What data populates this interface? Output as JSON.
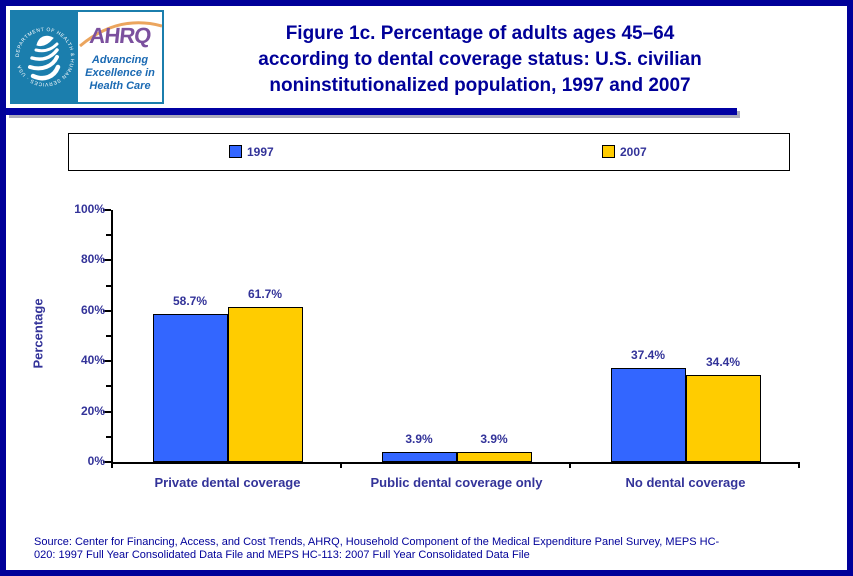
{
  "logo": {
    "seal_text": "DEPARTMENT OF HEALTH & HUMAN SERVICES · USA",
    "acronym": "AHRQ",
    "tagline_lines": [
      "Advancing",
      "Excellence in",
      "Health Care"
    ]
  },
  "title_lines": [
    "Figure 1c. Percentage of adults ages 45–64",
    "according to dental coverage status: U.S. civilian",
    "noninstitutionalized population, 1997 and 2007"
  ],
  "chart_data": {
    "type": "bar",
    "title": "Figure 1c. Percentage of adults ages 45–64 according to dental coverage status: U.S. civilian noninstitutionalized population, 1997 and 2007",
    "categories": [
      "Private dental coverage",
      "Public dental coverage only",
      "No dental coverage"
    ],
    "series": [
      {
        "name": "1997",
        "color": "#3366FF",
        "values": [
          58.7,
          3.9,
          37.4
        ]
      },
      {
        "name": "2007",
        "color": "#FFCC00",
        "values": [
          61.7,
          3.9,
          34.4
        ]
      }
    ],
    "value_label_suffix": "%",
    "ylabel": "Percentage",
    "xlabel": "",
    "ylim": [
      0,
      100
    ],
    "ytick_major_interval": 20,
    "ytick_minor_interval": 10,
    "ytick_labels": [
      "0%",
      "20%",
      "40%",
      "60%",
      "80%",
      "100%"
    ],
    "grid": "off",
    "legend_position": "top"
  },
  "source_lines": [
    "Source: Center for Financing, Access, and Cost Trends, AHRQ, Household Component of the Medical Expenditure Panel Survey, MEPS HC-",
    "020: 1997 Full Year Consolidated Data File and MEPS HC-113: 2007 Full Year Consolidated Data File"
  ],
  "colors": {
    "page_border": "#000099",
    "title_text": "#000099",
    "chart_text": "#333399",
    "bar_1997": "#3366FF",
    "bar_2007": "#FFCC00",
    "divider": "#0000A3",
    "logo_teal": "#1B7EAD",
    "ahrq_purple": "#7B509E",
    "tagline_blue": "#1B6AB3",
    "source_text": "#000099"
  }
}
